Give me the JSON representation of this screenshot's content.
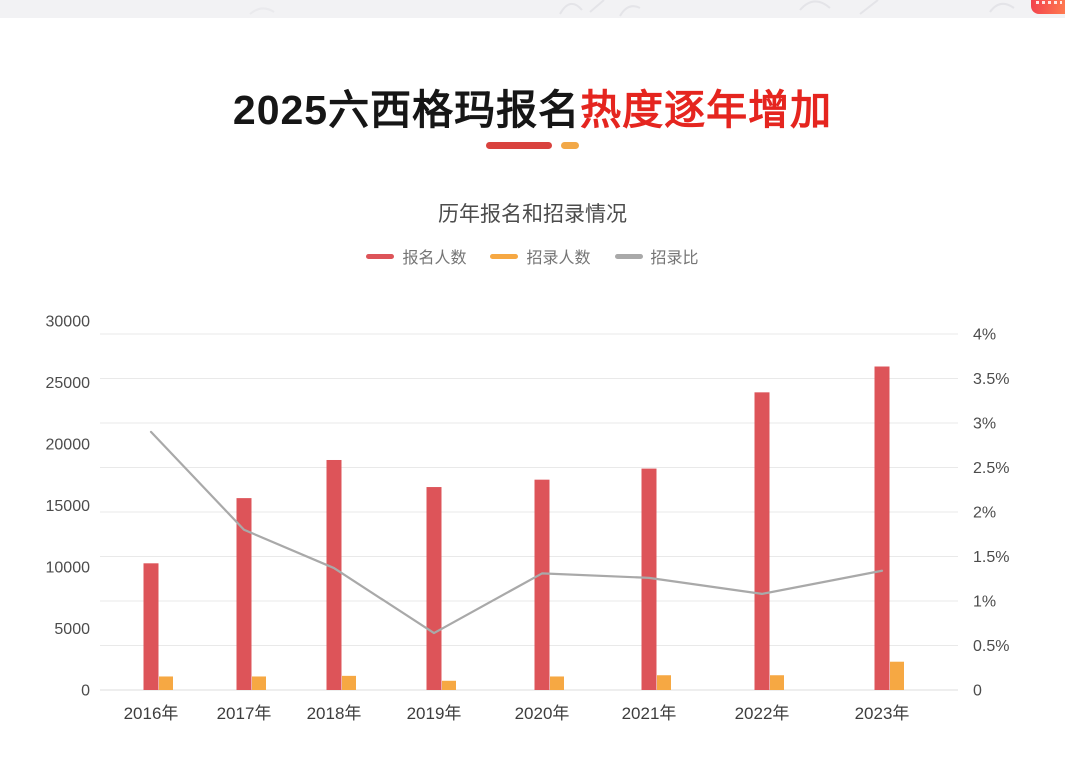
{
  "title": {
    "prefix": "2025六西格玛报名",
    "highlight": "热度逐年增加"
  },
  "colors": {
    "title_highlight": "#e5251f",
    "bar_primary": "#dd5459",
    "bar_secondary": "#f6a843",
    "line_series": "#a9a9a9",
    "divider_red": "#d9423e",
    "divider_orange": "#f2a847",
    "gridline": "#e9e9e9",
    "axis_label": "#4c4c4c"
  },
  "chart_data": {
    "type": "bar",
    "title": "历年报名和招录情况",
    "categories": [
      "2016年",
      "2017年",
      "2018年",
      "2019年",
      "2020年",
      "2021年",
      "2022年",
      "2023年"
    ],
    "series": [
      {
        "name": "报名人数",
        "type": "bar",
        "axis": "left",
        "color": "#dd5459",
        "values": [
          10300,
          15600,
          18700,
          16500,
          17100,
          18000,
          24200,
          26300
        ]
      },
      {
        "name": "招录人数",
        "type": "bar",
        "axis": "left",
        "color": "#f6a843",
        "values": [
          1100,
          1100,
          1150,
          750,
          1100,
          1200,
          1200,
          2300
        ]
      },
      {
        "name": "招录比",
        "type": "line",
        "axis": "right",
        "unit": "%",
        "color": "#a9a9a9",
        "values": [
          2.9,
          1.8,
          1.37,
          0.64,
          1.31,
          1.26,
          1.08,
          1.34
        ]
      }
    ],
    "left_axis": {
      "min": 0,
      "max": 30000,
      "step": 5000,
      "labels": [
        "0",
        "5000",
        "10000",
        "15000",
        "20000",
        "25000",
        "30000"
      ]
    },
    "right_axis": {
      "min": 0,
      "max": 4,
      "step": 0.5,
      "labels": [
        "0",
        "0.5%",
        "1%",
        "1.5%",
        "2%",
        "2.5%",
        "3%",
        "3.5%",
        "4%"
      ]
    },
    "grid": true,
    "legend_position": "top"
  }
}
